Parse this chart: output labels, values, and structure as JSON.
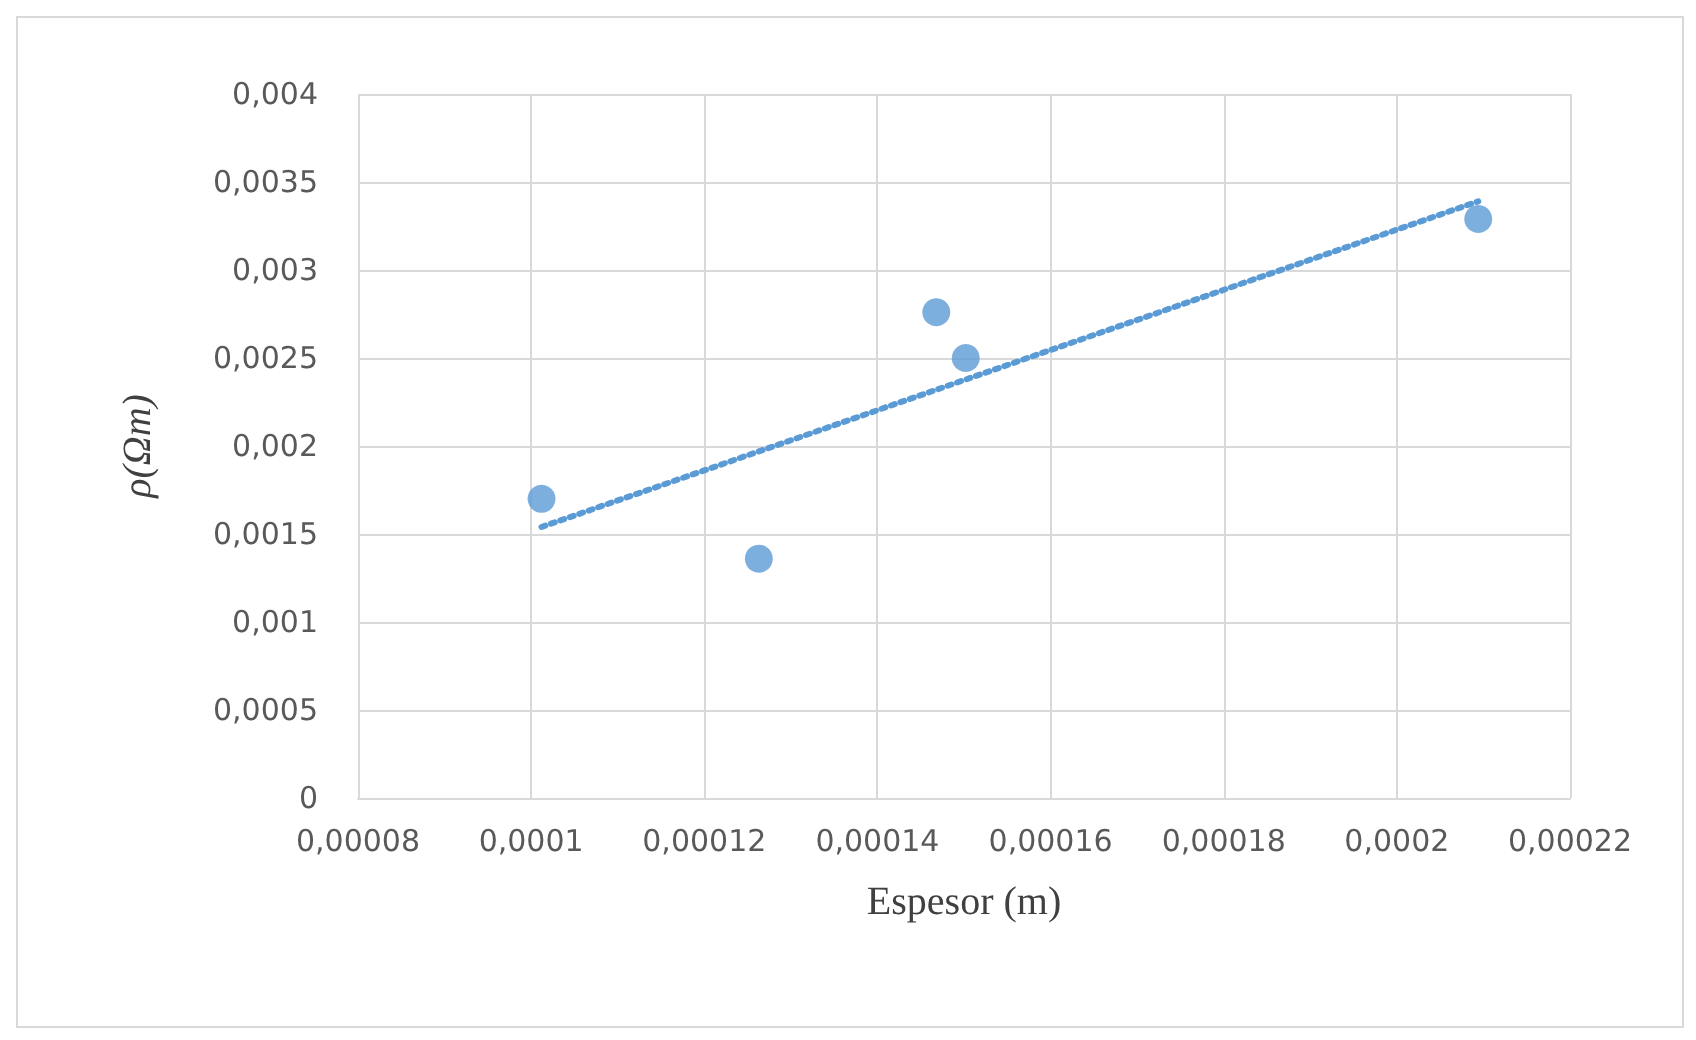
{
  "chart_data": {
    "type": "scatter",
    "xlabel": "Espesor (m)",
    "ylabel": "ρ(Ωm)",
    "x": [
      0.0001012,
      0.0001263,
      0.0001468,
      0.0001502,
      0.0002094
    ],
    "series": [
      {
        "color": "#5b9bd5",
        "values": [
          0.0017,
          0.00136,
          0.00276,
          0.0025,
          0.00329
        ],
        "marker": "circle"
      },
      {
        "type": "line",
        "color": "#5b9bd5",
        "x": [
          0.0001012,
          0.0002094
        ],
        "values": [
          0.00154,
          0.00339
        ],
        "marker": "none",
        "line_style": "dotted"
      }
    ],
    "xlim": [
      8e-05,
      0.00022
    ],
    "xticks": [
      {
        "value": 8e-05,
        "label": "0,00008"
      },
      {
        "value": 0.0001,
        "label": "0,0001"
      },
      {
        "value": 0.00012,
        "label": "0,00012"
      },
      {
        "value": 0.00014,
        "label": "0,00014"
      },
      {
        "value": 0.00016,
        "label": "0,00016"
      },
      {
        "value": 0.00018,
        "label": "0,00018"
      },
      {
        "value": 0.0002,
        "label": "0,0002"
      },
      {
        "value": 0.00022,
        "label": "0,00022"
      }
    ],
    "ylim": [
      0,
      0.004
    ],
    "yticks": [
      0,
      {
        "value": 0.0005,
        "label": "0,0005"
      },
      {
        "value": 0.001,
        "label": "0,001"
      },
      {
        "value": 0.0015,
        "label": "0,0015"
      },
      {
        "value": 0.002,
        "label": "0,002"
      },
      {
        "value": 0.0025,
        "label": "0,0025"
      },
      {
        "value": 0.003,
        "label": "0,003"
      },
      {
        "value": 0.0035,
        "label": "0,0035"
      },
      {
        "value": 0.004,
        "label": "0,004"
      }
    ],
    "grid": true
  }
}
